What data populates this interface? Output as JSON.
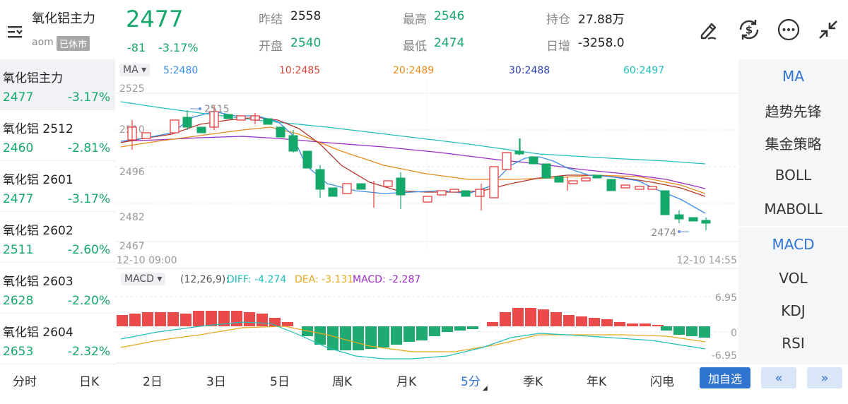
{
  "header": {
    "title": "氧化铝主力",
    "code": "aom",
    "status": "已休市",
    "price": "2477",
    "change": "-81",
    "change_pct": "-3.17%",
    "stats": [
      {
        "label": "昨结",
        "value": "2558",
        "color": "dark"
      },
      {
        "label": "开盘",
        "value": "2540",
        "color": "green"
      },
      {
        "label": "最高",
        "value": "2546",
        "color": "green"
      },
      {
        "label": "最低",
        "value": "2474",
        "color": "green"
      },
      {
        "label": "持仓",
        "value": "27.88万",
        "color": "dark"
      },
      {
        "label": "日增",
        "value": "-3258.0",
        "color": "dark"
      }
    ]
  },
  "sidebar": {
    "items": [
      {
        "name": "氧化铝主力",
        "price": "2477",
        "pct": "-3.17%"
      },
      {
        "name": "氧化铝 2512",
        "price": "2460",
        "pct": "-2.81%"
      },
      {
        "name": "氧化铝 2601",
        "price": "2477",
        "pct": "-3.17%"
      },
      {
        "name": "氧化铝 2602",
        "price": "2511",
        "pct": "-2.60%"
      },
      {
        "name": "氧化铝 2603",
        "price": "2628",
        "pct": "-2.20%"
      },
      {
        "name": "氧化铝 2604",
        "price": "2653",
        "pct": "-2.32%"
      }
    ]
  },
  "main_chart": {
    "tag": "MA",
    "legend": [
      {
        "text": "5:2480",
        "color": "#3a8ee6"
      },
      {
        "text": "10:2485",
        "color": "#d9443a"
      },
      {
        "text": "20:2489",
        "color": "#e58b1e"
      },
      {
        "text": "30:2488",
        "color": "#2d3fa8"
      },
      {
        "text": "60:2497",
        "color": "#1fbfb8"
      }
    ],
    "y_ticks": [
      "2525",
      "2510",
      "2496",
      "2482",
      "2467"
    ],
    "x_start": "12-10 09:00",
    "x_end": "12-10 14:55",
    "high_label": "2515",
    "low_label": "2474"
  },
  "macd_chart": {
    "tag": "MACD",
    "params": "(12,26,9):",
    "diff": "DIFF: -4.274",
    "dea": "DEA: -3.131",
    "macd": "MACD: -2.287",
    "diff_color": "#1fbfb8",
    "dea_color": "#e5a81e",
    "macd_color": "#9b2ec2",
    "y_ticks": [
      "6.95",
      "0",
      "-6.95"
    ]
  },
  "indicators": [
    "MA",
    "趋势先锋",
    "集金策略",
    "BOLL",
    "MABOLL",
    "MACD",
    "VOL",
    "KDJ",
    "RSI"
  ],
  "period_tabs": [
    "分时",
    "日K",
    "2日",
    "3日",
    "5日",
    "周K",
    "月K",
    "5分",
    "季K",
    "年K",
    "闪电"
  ],
  "selected_period": "5分",
  "actions": {
    "favorite": "加自选",
    "prev": "«",
    "next": "»"
  },
  "colors": {
    "up": "#e53e3e",
    "down": "#15a86b",
    "accent": "#2f74d0"
  }
}
